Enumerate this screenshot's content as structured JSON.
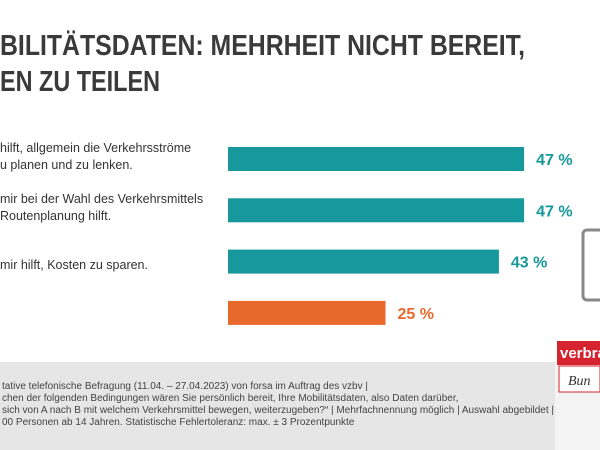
{
  "chart_data": {
    "type": "bar",
    "title": [
      "BILITÄTSDATEN: MEHRHEIT NICHT BEREIT,",
      "EN ZU TEILEN"
    ],
    "categories": [
      "hilft, allgemein die Verkehrsströme\nu planen und zu lenken.",
      "mir bei der Wahl des Verkehrsmittels\nRoutenplanung hilft.",
      "mir hilft, Kosten zu sparen.",
      null
    ],
    "values": [
      47,
      47,
      43,
      25
    ],
    "value_labels": [
      "47 %",
      "47 %",
      "43 %",
      "25 %"
    ],
    "colors": [
      "#16989c",
      "#16989c",
      "#16989c",
      "#e8692b"
    ]
  },
  "footer": {
    "lines": [
      "tative telefonische Befragung (11.04. – 27.04.2023) von forsa im Auftrag des vzbv |",
      "chen der folgenden Bedingungen wären Sie persönlich bereit, Ihre Mobilitätsdaten, also Daten darüber,",
      "sich von A nach B mit welchem Verkehrsmittel bewegen, weiterzugeben?“ | Mehrfachnennung möglich | Auswahl abgebildet |",
      "00 Personen ab 14 Jahren. Statistische Fehlertoleranz: max. ± 3 Prozentpunkte"
    ]
  },
  "logo": {
    "top": "verbra",
    "bottom": "Bun"
  }
}
